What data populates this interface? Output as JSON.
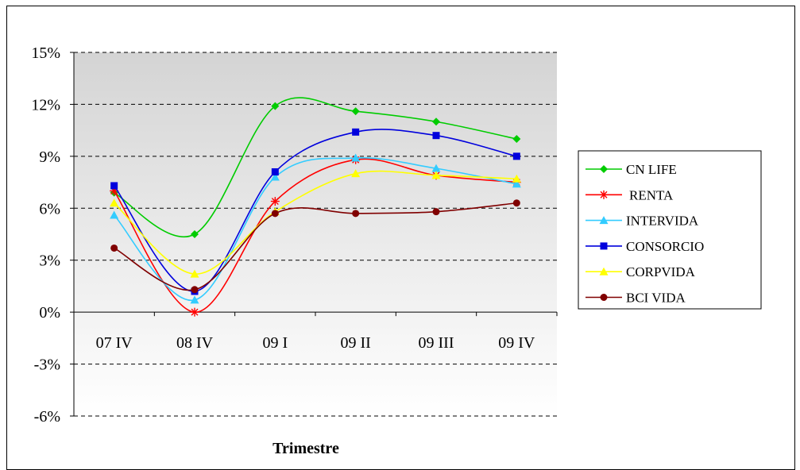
{
  "chart_data": {
    "type": "line",
    "title": "",
    "xlabel": "Trimestre",
    "ylabel": "",
    "categories": [
      "07 IV",
      "08 IV",
      "09 I",
      "09 II",
      "09 III",
      "09 IV"
    ],
    "ylim": [
      -6,
      15
    ],
    "yticks": [
      15,
      12,
      9,
      6,
      3,
      0,
      -3,
      -6
    ],
    "ytick_labels": [
      "15%",
      "12%",
      "9%",
      "6%",
      "3%",
      "0%",
      "-3%",
      "-6%"
    ],
    "grid": "horizontal dashed",
    "legend_position": "right",
    "series": [
      {
        "name": "CN LIFE",
        "color": "#00cc00",
        "marker": "diamond",
        "values": [
          6.9,
          4.5,
          11.9,
          11.6,
          11.0,
          10.0
        ]
      },
      {
        "name": "RENTA",
        "color": "#ff0000",
        "marker": "star",
        "values": [
          7.0,
          0.0,
          6.4,
          8.8,
          7.9,
          7.5
        ]
      },
      {
        "name": "INTERVIDA",
        "color": "#33ccff",
        "marker": "triangle",
        "values": [
          5.6,
          0.7,
          7.8,
          8.9,
          8.3,
          7.4
        ]
      },
      {
        "name": "CONSORCIO",
        "color": "#0000dd",
        "marker": "square",
        "values": [
          7.3,
          1.2,
          8.1,
          10.4,
          10.2,
          9.0
        ]
      },
      {
        "name": "CORPVIDA",
        "color": "#ffff00",
        "marker": "triangle",
        "values": [
          6.3,
          2.2,
          5.8,
          8.0,
          7.9,
          7.7
        ]
      },
      {
        "name": "BCI VIDA",
        "color": "#800000",
        "marker": "circle",
        "values": [
          3.7,
          1.3,
          5.7,
          5.7,
          5.8,
          6.3
        ]
      }
    ]
  }
}
